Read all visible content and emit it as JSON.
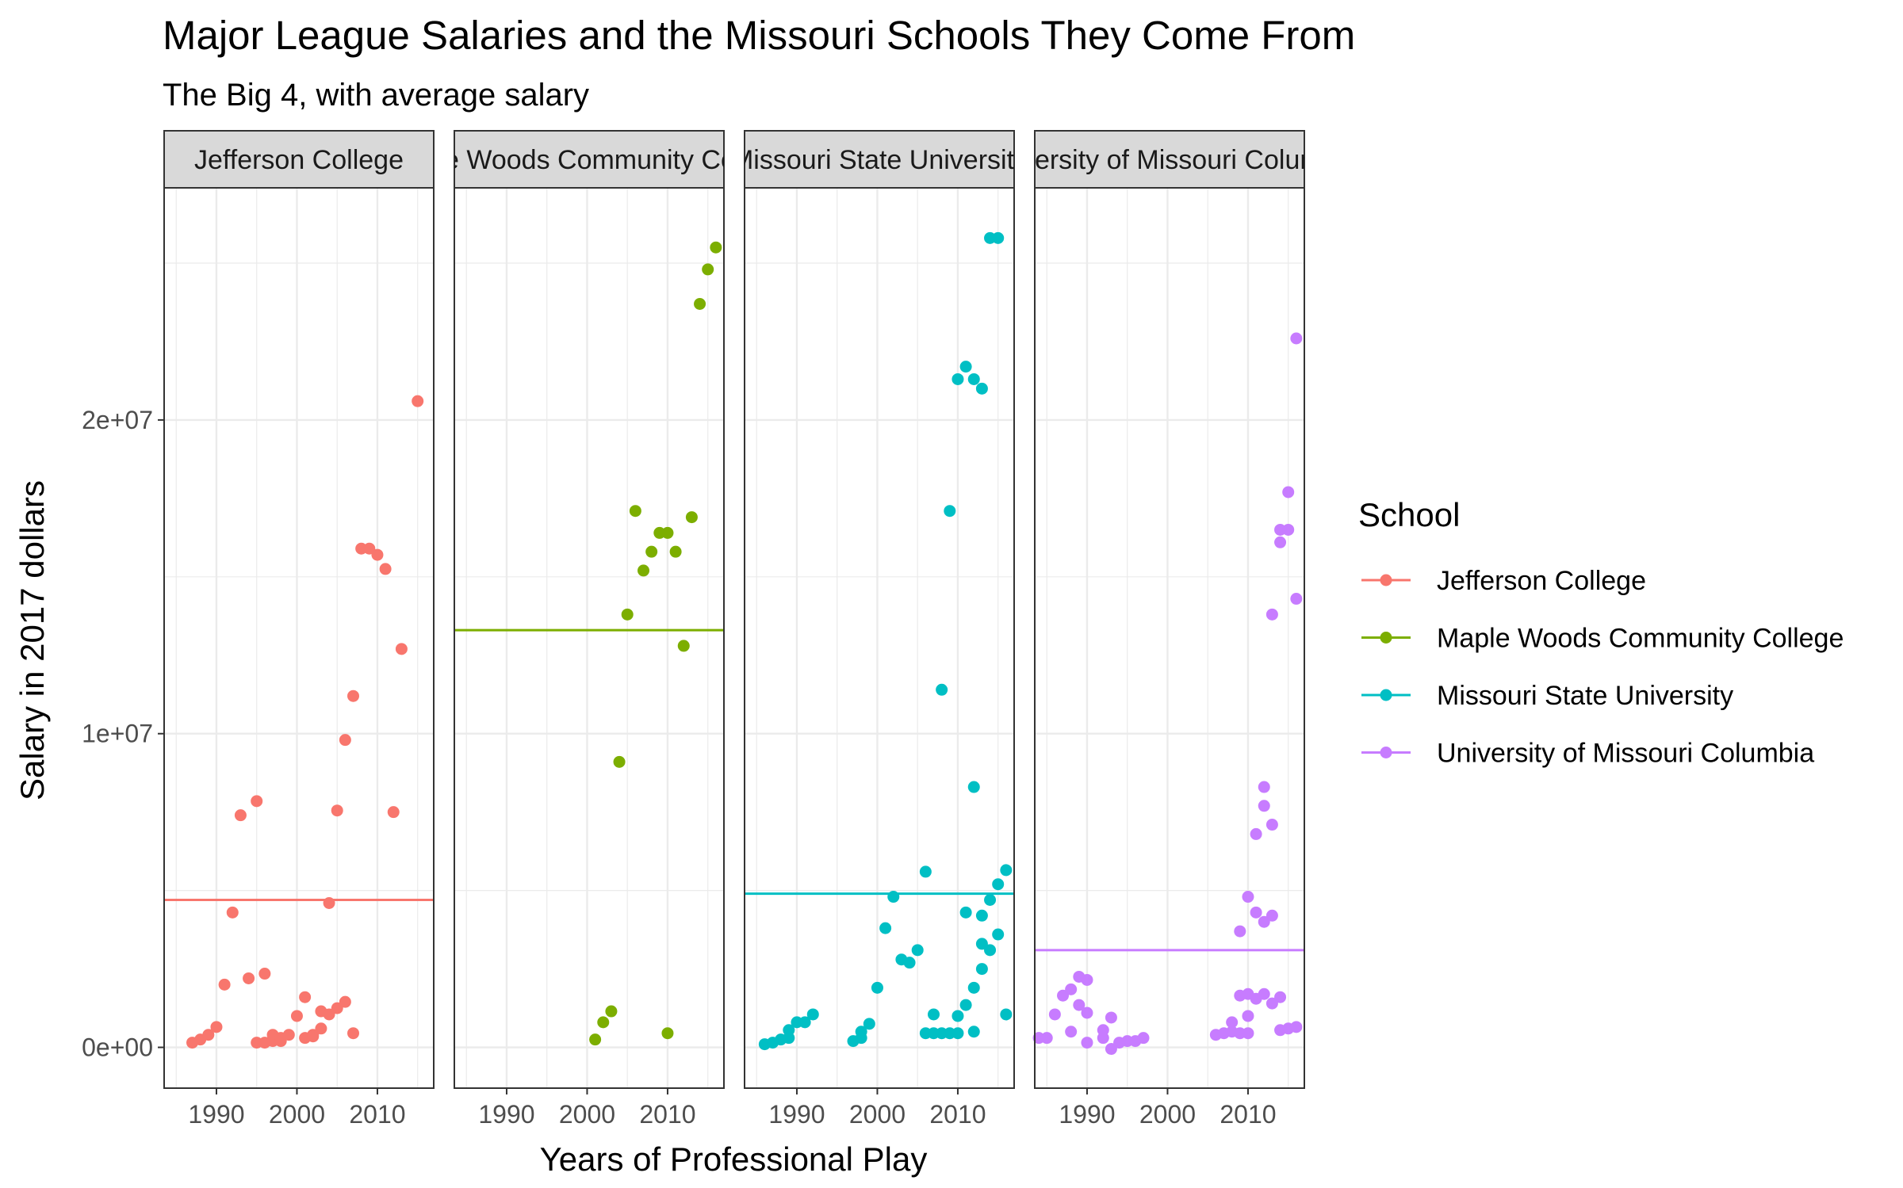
{
  "chart_data": {
    "type": "scatter",
    "title": "Major League Salaries and the Missouri Schools They Come From",
    "subtitle": "The Big 4, with average salary",
    "xlabel": "Years of Professional Play",
    "ylabel": "Salary in 2017 dollars",
    "xlim": [
      1983.5,
      2017
    ],
    "ylim": [
      -1300000,
      27400000
    ],
    "x_ticks": [
      1990,
      2000,
      2010
    ],
    "x_tick_labels": [
      "1990",
      "2000",
      "2010"
    ],
    "y_ticks": [
      0,
      10000000,
      20000000
    ],
    "y_tick_labels": [
      "0e+00",
      "1e+07",
      "2e+07"
    ],
    "grid": true,
    "legend": {
      "title": "School",
      "position": "right",
      "entries": [
        "Jefferson College",
        "Maple Woods Community College",
        "Missouri State University",
        "University of Missouri Columbia"
      ]
    },
    "series": [
      {
        "name": "Jefferson College",
        "strip_label": "Jefferson College",
        "color": "#F8766D",
        "average": 4700000,
        "points": [
          [
            1987,
            150000
          ],
          [
            1988,
            250000
          ],
          [
            1989,
            400000
          ],
          [
            1990,
            650000
          ],
          [
            1991,
            2000000
          ],
          [
            1992,
            4300000
          ],
          [
            1993,
            7400000
          ],
          [
            1994,
            2200000
          ],
          [
            1995,
            7850000
          ],
          [
            1995,
            150000
          ],
          [
            1996,
            2350000
          ],
          [
            1996,
            150000
          ],
          [
            1997,
            200000
          ],
          [
            1997,
            400000
          ],
          [
            1998,
            200000
          ],
          [
            1998,
            300000
          ],
          [
            1999,
            400000
          ],
          [
            2000,
            1000000
          ],
          [
            2001,
            300000
          ],
          [
            2001,
            1600000
          ],
          [
            2002,
            350000
          ],
          [
            2002,
            400000
          ],
          [
            2003,
            600000
          ],
          [
            2003,
            1150000
          ],
          [
            2004,
            4600000
          ],
          [
            2004,
            1050000
          ],
          [
            2005,
            1250000
          ],
          [
            2005,
            7550000
          ],
          [
            2006,
            1450000
          ],
          [
            2006,
            9800000
          ],
          [
            2007,
            11200000
          ],
          [
            2007,
            450000
          ],
          [
            2008,
            15900000
          ],
          [
            2009,
            15900000
          ],
          [
            2010,
            15700000
          ],
          [
            2011,
            15250000
          ],
          [
            2012,
            7500000
          ],
          [
            2013,
            12700000
          ],
          [
            2015,
            20600000
          ]
        ]
      },
      {
        "name": "Maple Woods Community College",
        "strip_label": "Maple Woods Community College",
        "color": "#7CAE00",
        "average": 13300000,
        "points": [
          [
            2001,
            250000
          ],
          [
            2002,
            800000
          ],
          [
            2003,
            1150000
          ],
          [
            2004,
            9100000
          ],
          [
            2005,
            13800000
          ],
          [
            2006,
            17100000
          ],
          [
            2007,
            15200000
          ],
          [
            2008,
            15800000
          ],
          [
            2009,
            16400000
          ],
          [
            2010,
            16400000
          ],
          [
            2010,
            450000
          ],
          [
            2011,
            15800000
          ],
          [
            2012,
            12800000
          ],
          [
            2013,
            16900000
          ],
          [
            2014,
            23700000
          ],
          [
            2015,
            24800000
          ],
          [
            2016,
            25500000
          ]
        ]
      },
      {
        "name": "Missouri State University",
        "strip_label": "Missouri State University",
        "color": "#00BFC4",
        "average": 4900000,
        "points": [
          [
            1986,
            100000
          ],
          [
            1987,
            150000
          ],
          [
            1988,
            250000
          ],
          [
            1989,
            300000
          ],
          [
            1989,
            550000
          ],
          [
            1990,
            800000
          ],
          [
            1991,
            800000
          ],
          [
            1992,
            1050000
          ],
          [
            1997,
            200000
          ],
          [
            1998,
            300000
          ],
          [
            1998,
            500000
          ],
          [
            1999,
            750000
          ],
          [
            2000,
            1900000
          ],
          [
            2001,
            3800000
          ],
          [
            2002,
            4800000
          ],
          [
            2003,
            2800000
          ],
          [
            2004,
            2700000
          ],
          [
            2005,
            3100000
          ],
          [
            2006,
            5600000
          ],
          [
            2006,
            450000
          ],
          [
            2007,
            1050000
          ],
          [
            2007,
            450000
          ],
          [
            2008,
            11400000
          ],
          [
            2008,
            450000
          ],
          [
            2009,
            17100000
          ],
          [
            2009,
            450000
          ],
          [
            2010,
            21300000
          ],
          [
            2010,
            1000000
          ],
          [
            2010,
            450000
          ],
          [
            2011,
            21700000
          ],
          [
            2011,
            4300000
          ],
          [
            2011,
            1350000
          ],
          [
            2012,
            21300000
          ],
          [
            2012,
            8300000
          ],
          [
            2012,
            1900000
          ],
          [
            2012,
            500000
          ],
          [
            2013,
            21000000
          ],
          [
            2013,
            4200000
          ],
          [
            2013,
            3300000
          ],
          [
            2013,
            2500000
          ],
          [
            2014,
            25800000
          ],
          [
            2014,
            4700000
          ],
          [
            2014,
            3100000
          ],
          [
            2015,
            25800000
          ],
          [
            2015,
            5200000
          ],
          [
            2015,
            3600000
          ],
          [
            2016,
            5650000
          ],
          [
            2016,
            1050000
          ]
        ]
      },
      {
        "name": "University of Missouri Columbia",
        "strip_label": "University of Missouri Columbia",
        "color": "#C77CFF",
        "average": 3100000,
        "points": [
          [
            1984,
            300000
          ],
          [
            1985,
            300000
          ],
          [
            1986,
            1050000
          ],
          [
            1987,
            1650000
          ],
          [
            1988,
            1850000
          ],
          [
            1988,
            500000
          ],
          [
            1989,
            2250000
          ],
          [
            1989,
            1350000
          ],
          [
            1990,
            2150000
          ],
          [
            1990,
            1100000
          ],
          [
            1990,
            150000
          ],
          [
            1992,
            300000
          ],
          [
            1992,
            550000
          ],
          [
            1993,
            950000
          ],
          [
            1993,
            -50000
          ],
          [
            1994,
            150000
          ],
          [
            1995,
            200000
          ],
          [
            1996,
            200000
          ],
          [
            1997,
            300000
          ],
          [
            2006,
            400000
          ],
          [
            2007,
            450000
          ],
          [
            2008,
            500000
          ],
          [
            2008,
            800000
          ],
          [
            2009,
            3700000
          ],
          [
            2009,
            450000
          ],
          [
            2009,
            1650000
          ],
          [
            2010,
            4800000
          ],
          [
            2010,
            1700000
          ],
          [
            2010,
            1000000
          ],
          [
            2010,
            450000
          ],
          [
            2011,
            6800000
          ],
          [
            2011,
            4300000
          ],
          [
            2011,
            1550000
          ],
          [
            2012,
            8300000
          ],
          [
            2012,
            7700000
          ],
          [
            2012,
            4000000
          ],
          [
            2012,
            1700000
          ],
          [
            2013,
            13800000
          ],
          [
            2013,
            7100000
          ],
          [
            2013,
            4200000
          ],
          [
            2013,
            1400000
          ],
          [
            2014,
            16100000
          ],
          [
            2014,
            16500000
          ],
          [
            2014,
            1600000
          ],
          [
            2014,
            550000
          ],
          [
            2015,
            17700000
          ],
          [
            2015,
            16500000
          ],
          [
            2015,
            600000
          ],
          [
            2016,
            22600000
          ],
          [
            2016,
            14300000
          ],
          [
            2016,
            650000
          ]
        ]
      }
    ]
  }
}
